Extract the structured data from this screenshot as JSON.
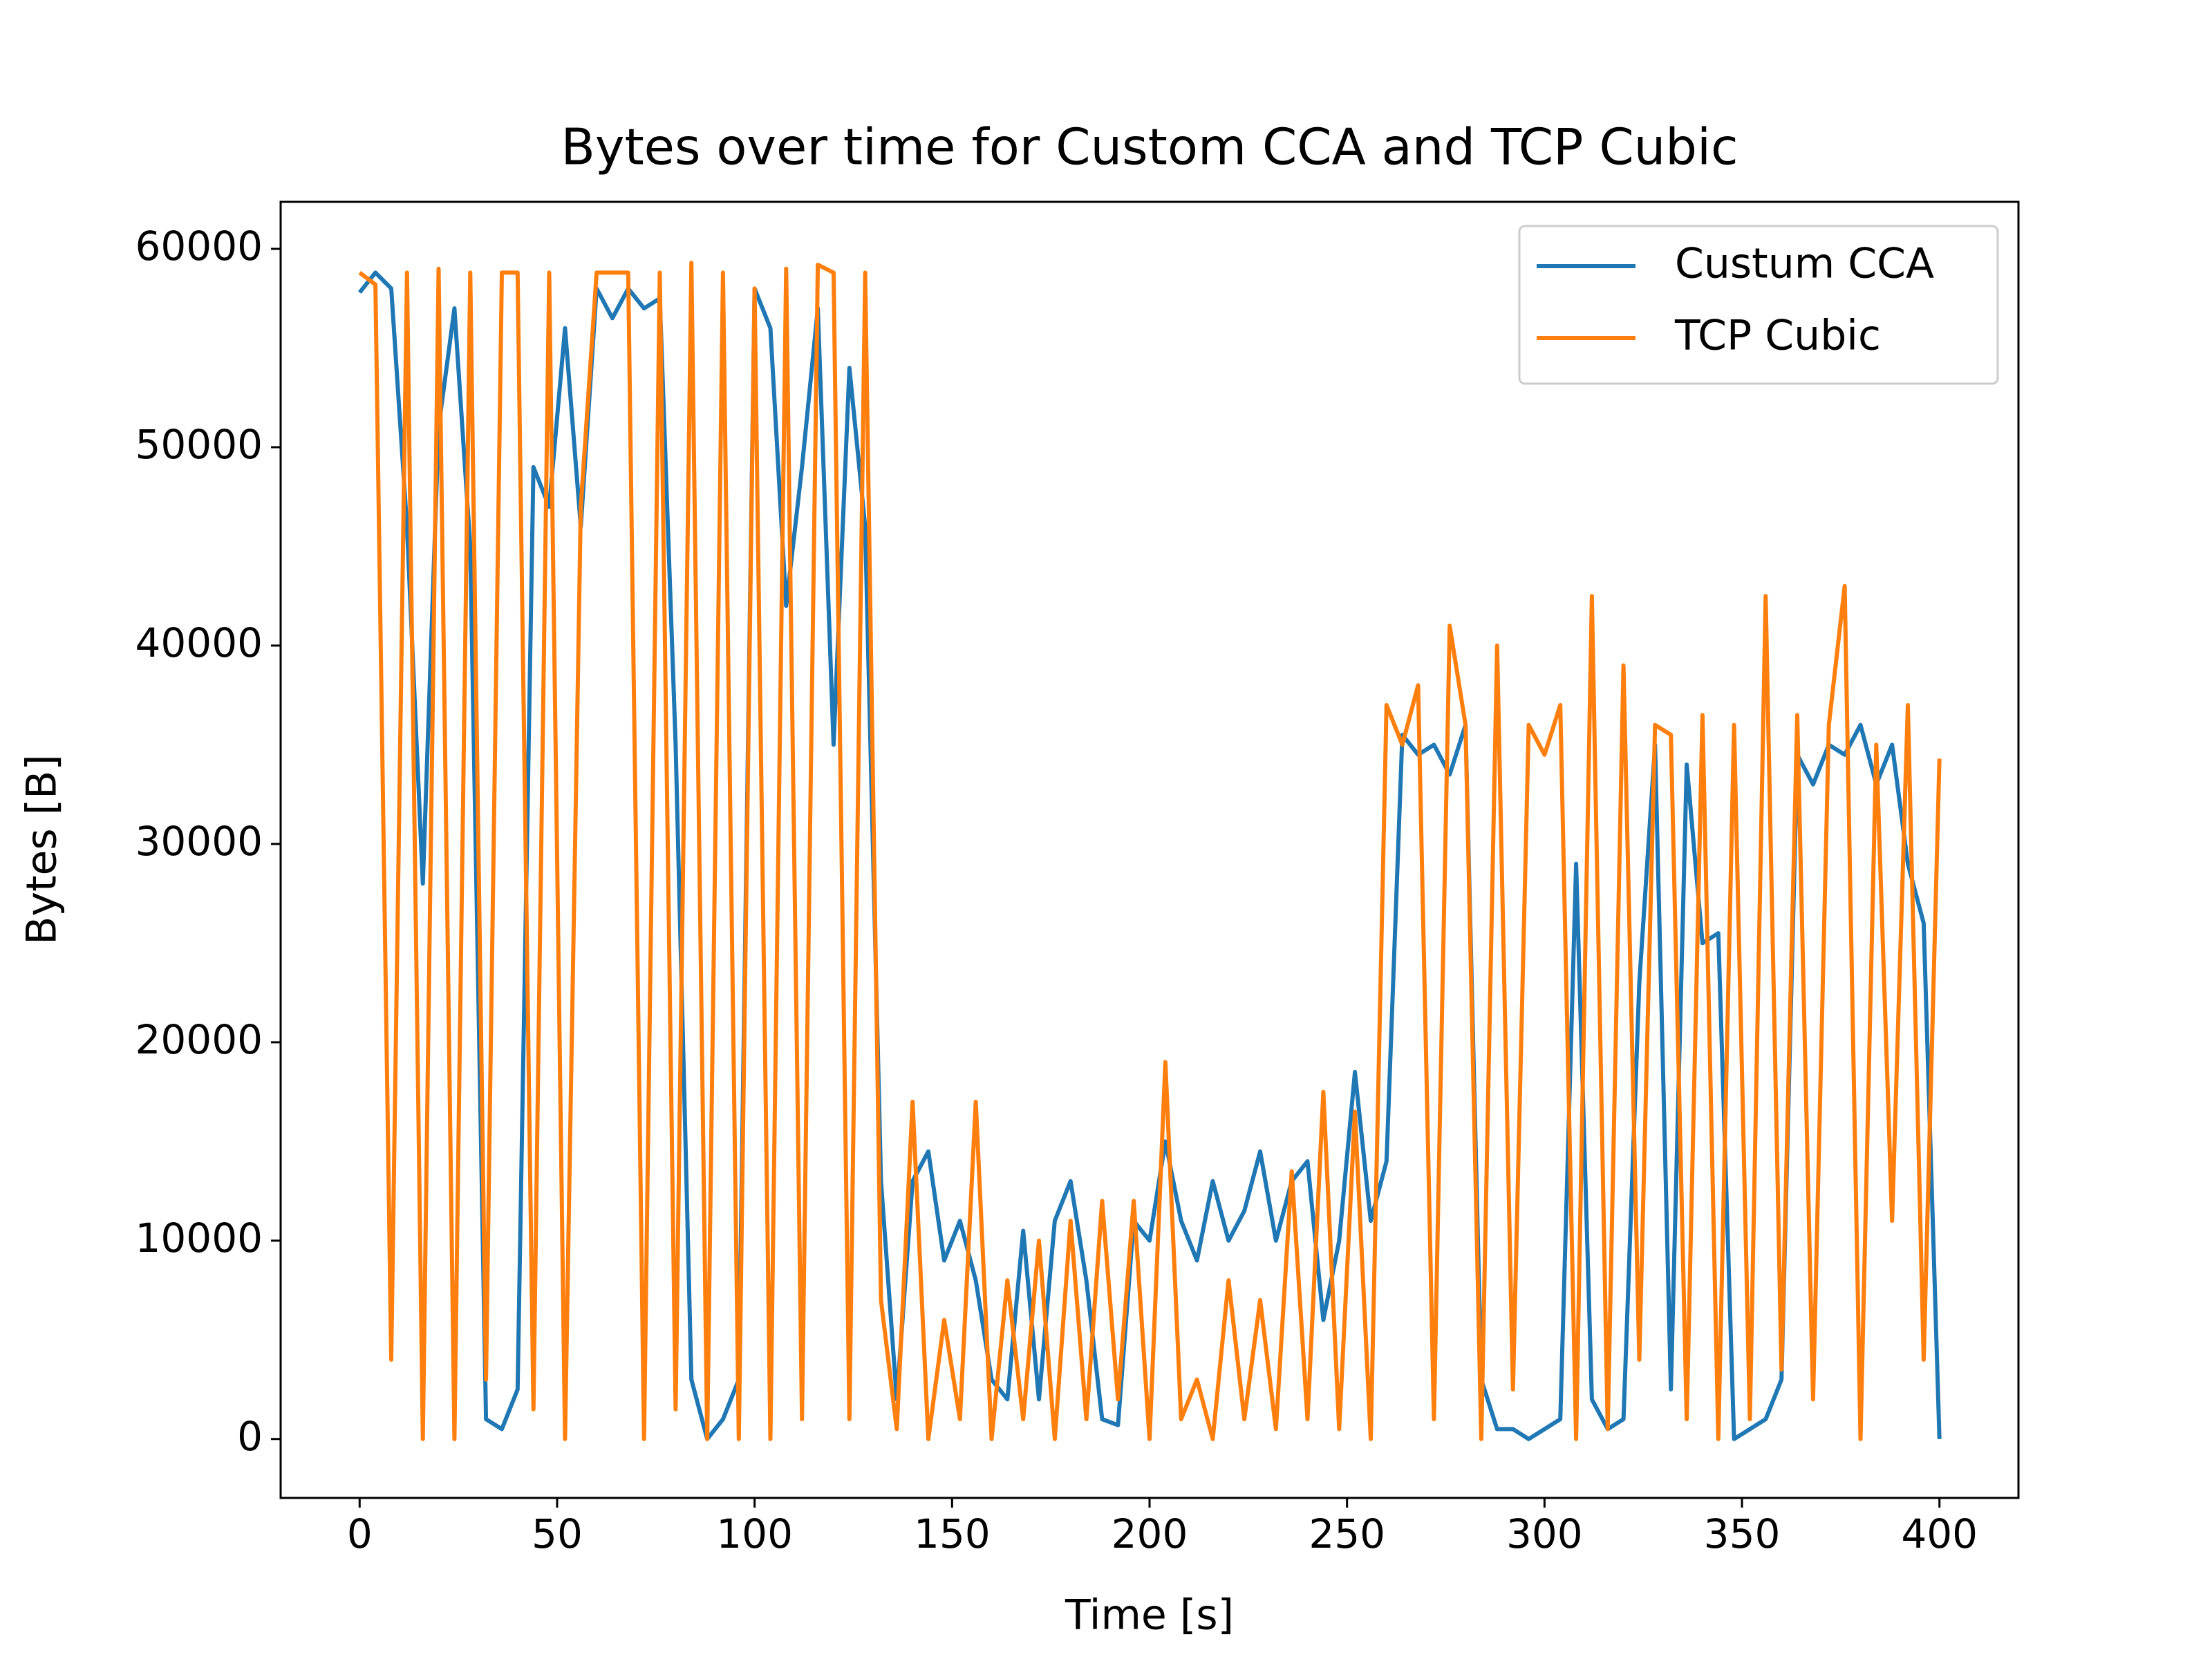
{
  "chart_data": {
    "type": "line",
    "title": "Bytes over time for Custom CCA and TCP Cubic",
    "xlabel": "Time [s]",
    "ylabel": "Bytes [B]",
    "x": [
      0,
      4,
      8,
      12,
      16,
      20,
      24,
      28,
      32,
      36,
      40,
      44,
      48,
      52,
      56,
      60,
      64,
      68,
      72,
      76,
      80,
      84,
      88,
      92,
      96,
      100,
      104,
      108,
      112,
      116,
      120,
      124,
      128,
      132,
      136,
      140,
      144,
      148,
      152,
      156,
      160,
      164,
      168,
      172,
      176,
      180,
      184,
      188,
      192,
      196,
      200,
      204,
      208,
      212,
      216,
      220,
      224,
      228,
      232,
      236,
      240,
      244,
      248,
      252,
      256,
      260,
      264,
      268,
      272,
      276,
      280,
      284,
      288,
      292,
      296,
      300,
      304,
      308,
      312,
      316,
      320,
      324,
      328,
      332,
      336,
      340,
      344,
      348,
      352,
      356,
      360,
      364,
      368,
      372,
      376,
      380,
      384,
      388,
      392,
      396,
      400
    ],
    "series": [
      {
        "name": "Custum CCA",
        "color": "#1f77b4",
        "values": [
          57800,
          58800,
          58000,
          46000,
          28000,
          51000,
          57000,
          45000,
          1000,
          500,
          2500,
          49000,
          47000,
          56000,
          46000,
          58000,
          56500,
          58000,
          57000,
          57500,
          35000,
          3000,
          0,
          1000,
          3000,
          58000,
          56000,
          42000,
          49000,
          57000,
          35000,
          54000,
          46000,
          13000,
          2000,
          13000,
          14500,
          9000,
          11000,
          8000,
          3000,
          2000,
          10500,
          2000,
          11000,
          13000,
          8000,
          1000,
          700,
          11000,
          10000,
          15000,
          11000,
          9000,
          13000,
          10000,
          11500,
          14500,
          10000,
          13000,
          14000,
          6000,
          10000,
          18500,
          11000,
          14000,
          35500,
          34500,
          35000,
          33500,
          36000,
          3000,
          500,
          500,
          0,
          500,
          1000,
          29000,
          2000,
          500,
          1000,
          23000,
          35000,
          2500,
          34000,
          25000,
          25500,
          0,
          500,
          1000,
          3000,
          34500,
          33000,
          35000,
          34500,
          36000,
          33000,
          35000,
          29000,
          26000,
          0
        ]
      },
      {
        "name": "TCP Cubic",
        "color": "#ff7f0e",
        "values": [
          58800,
          58200,
          4000,
          58800,
          0,
          59000,
          0,
          58800,
          3000,
          58800,
          58800,
          1500,
          58800,
          0,
          47000,
          58800,
          58800,
          58800,
          0,
          58800,
          1500,
          59300,
          0,
          58800,
          0,
          58000,
          0,
          59000,
          1000,
          59200,
          58800,
          1000,
          58800,
          7000,
          500,
          17000,
          0,
          6000,
          1000,
          17000,
          0,
          8000,
          1000,
          10000,
          0,
          11000,
          1000,
          12000,
          2000,
          12000,
          0,
          19000,
          1000,
          3000,
          0,
          8000,
          1000,
          7000,
          500,
          13500,
          1000,
          17500,
          500,
          16500,
          0,
          37000,
          35000,
          38000,
          1000,
          41000,
          36000,
          0,
          40000,
          2500,
          36000,
          34500,
          37000,
          0,
          42500,
          500,
          39000,
          4000,
          36000,
          35500,
          1000,
          36500,
          0,
          36000,
          1000,
          42500,
          3500,
          36500,
          2000,
          36000,
          43000,
          0,
          35000,
          11000,
          37000,
          4000,
          34300
        ]
      }
    ],
    "xlim": [
      -20,
      420
    ],
    "ylim": [
      -2970,
      62370
    ],
    "xticks": [
      0,
      50,
      100,
      150,
      200,
      250,
      300,
      350,
      400
    ],
    "yticks": [
      0,
      10000,
      20000,
      30000,
      40000,
      50000,
      60000
    ],
    "legend": "upper right"
  }
}
